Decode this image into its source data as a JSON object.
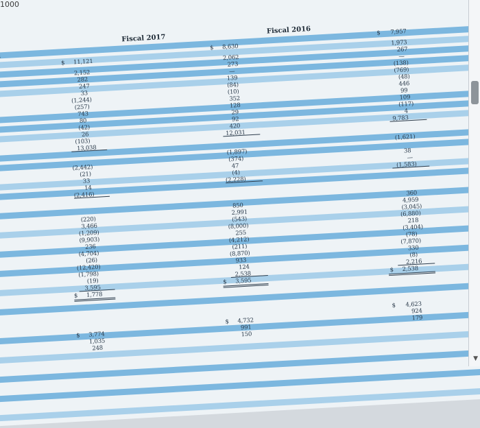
{
  "corner_text": "1000",
  "left_clip": "18",
  "headers": {
    "fiscal_2017": "Fiscal 2017",
    "fiscal_2016": "Fiscal 2016"
  },
  "col_a": [
    "$",
    "11,121",
    "2,152",
    "282",
    "247",
    "33",
    "(1,244)",
    "(257)",
    "743",
    "80",
    "(42)",
    "26",
    "(103)",
    "13,038",
    "(2,442)",
    "(21)",
    "33",
    "14",
    "(2,416)",
    "(220)",
    "3,466",
    "(1,209)",
    "(9,903)",
    "236",
    "(4,704)",
    "(26)",
    "(12,420)",
    "(1,798)",
    "(19)",
    "3,595",
    "$",
    "1,778",
    "$",
    "3,774",
    "1,035",
    "248"
  ],
  "col_b": [
    "$",
    "8,630",
    "2,062",
    "273",
    "—",
    "139",
    "(84)",
    "(10)",
    "352",
    "128",
    "29",
    "92",
    "420",
    "12,031",
    "(1,897)",
    "(374)",
    "47",
    "(4)",
    "(2,228)",
    "850",
    "2,991",
    "(543)",
    "(8,000)",
    "255",
    "(4,212)",
    "(211)",
    "(8,870)",
    "933",
    "124",
    "2,538",
    "$",
    "3,595",
    "$",
    "4,732",
    "991",
    "150"
  ],
  "col_c": [
    "$",
    "7,957",
    "1,973",
    "267",
    "—",
    "(138)",
    "(769)",
    "(48)",
    "446",
    "99",
    "109",
    "(117)",
    "4",
    "9,783",
    "(1,621)",
    "38",
    "—",
    "(1,583)",
    "360",
    "4,959",
    "(3,045)",
    "(6,880)",
    "218",
    "(3,404)",
    "(78)",
    "(7,870)",
    "330",
    "(8)",
    "2,216",
    "$",
    "2,538",
    "$",
    "4,623",
    "924",
    "179"
  ]
}
